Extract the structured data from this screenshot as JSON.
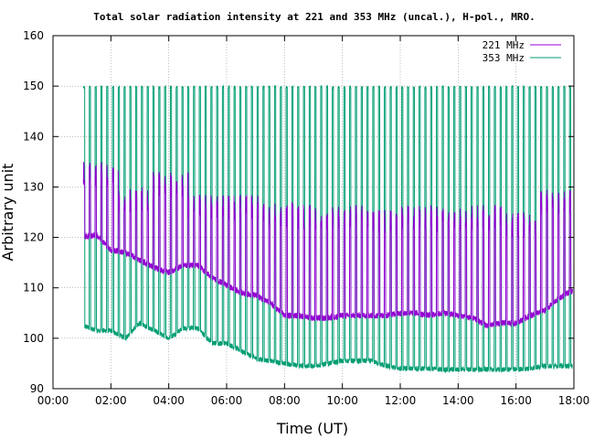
{
  "chart_data": {
    "type": "line",
    "title": "Total solar radiation intensity at 221 and 353 MHz (uncal.), H-pol., MRO.",
    "xlabel": "Time (UT)",
    "ylabel": "Arbitrary unit",
    "xlim": [
      0,
      18
    ],
    "ylim": [
      90,
      160
    ],
    "x_ticks": [
      "00:00",
      "02:00",
      "04:00",
      "06:00",
      "08:00",
      "10:00",
      "12:00",
      "14:00",
      "16:00",
      "18:00"
    ],
    "y_ticks": [
      "90",
      "100",
      "110",
      "120",
      "130",
      "140",
      "150",
      "160"
    ],
    "grid": true,
    "legend_position": "top-right",
    "series": [
      {
        "name": "221 MHz",
        "color": "#9400d3",
        "x": [
          1.05,
          1.5,
          2.0,
          2.5,
          3.0,
          3.5,
          4.0,
          4.5,
          5.0,
          5.5,
          6.0,
          6.5,
          7.0,
          7.5,
          8.0,
          8.5,
          9.0,
          9.5,
          10.0,
          10.5,
          11.0,
          11.5,
          12.0,
          12.5,
          13.0,
          13.5,
          14.0,
          14.5,
          15.0,
          15.5,
          16.0,
          16.5,
          17.0,
          17.5,
          17.95
        ],
        "values": [
          120,
          120.5,
          117.5,
          117,
          115.5,
          114,
          113,
          114.5,
          114.5,
          112,
          110.5,
          109,
          108.5,
          107,
          104.5,
          104.5,
          104,
          104,
          104.5,
          104.5,
          104.5,
          104.5,
          105,
          105,
          104.5,
          105,
          104.5,
          104,
          102.5,
          103,
          103,
          104.5,
          105.5,
          108,
          109.5
        ],
        "spike_peaks": [
          135,
          130,
          133,
          128.5,
          128.5,
          127,
          126.5,
          126.5,
          125.5,
          126.5,
          126,
          126.5,
          125,
          129.5
        ]
      },
      {
        "name": "353 MHz",
        "color": "#009e73",
        "x": [
          1.05,
          1.5,
          2.0,
          2.5,
          3.0,
          3.5,
          4.0,
          4.5,
          5.0,
          5.5,
          6.0,
          6.5,
          7.0,
          7.5,
          8.0,
          8.5,
          9.0,
          9.5,
          10.0,
          10.5,
          11.0,
          11.5,
          12.0,
          12.5,
          13.0,
          13.5,
          14.0,
          14.5,
          15.0,
          15.5,
          16.0,
          16.5,
          17.0,
          17.5,
          17.95
        ],
        "values": [
          102.5,
          101.5,
          101.5,
          100,
          103,
          101.5,
          100,
          102,
          102,
          99,
          99,
          97.5,
          96,
          95.5,
          95,
          94.5,
          94.5,
          95,
          95.5,
          95.5,
          95.5,
          94.5,
          94,
          94,
          94,
          93.8,
          93.8,
          93.8,
          93.8,
          93.8,
          93.8,
          94,
          94.5,
          94.5,
          94.5
        ],
        "spike_peaks": [
          150
        ]
      }
    ]
  }
}
